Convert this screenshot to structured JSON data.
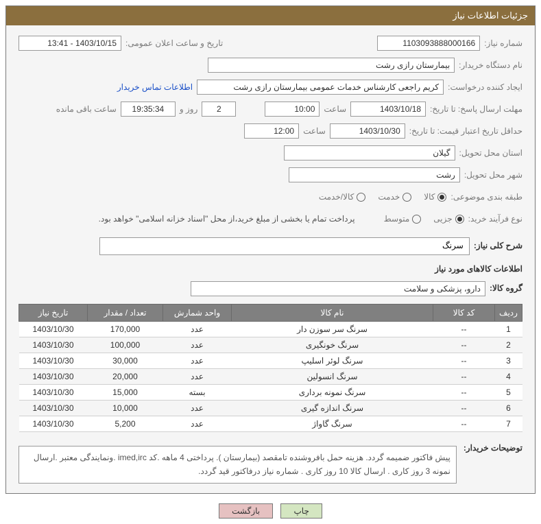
{
  "panel": {
    "title": "جزئیات اطلاعات نیاز"
  },
  "fields": {
    "need_no_label": "شماره نیاز:",
    "need_no": "1103093888000166",
    "announce_datetime_label": "تاریخ و ساعت اعلان عمومی:",
    "announce_datetime": "1403/10/15 - 13:41",
    "buyer_org_label": "نام دستگاه خریدار:",
    "buyer_org": "بیمارستان رازی رشت",
    "requester_label": "ایجاد کننده درخواست:",
    "requester": "کریم راجعی کارشناس خدمات عمومی بیمارستان رازی رشت",
    "contact_link": "اطلاعات تماس خریدار",
    "deadline_label": "مهلت ارسال پاسخ: تا تاریخ:",
    "deadline_date": "1403/10/18",
    "hour_label": "ساعت",
    "deadline_time": "10:00",
    "days_remaining": "2",
    "days_and": "روز و",
    "time_remaining": "19:35:34",
    "time_remaining_label": "ساعت باقی مانده",
    "validity_label": "حداقل تاریخ اعتبار قیمت: تا تاریخ:",
    "validity_date": "1403/10/30",
    "validity_time": "12:00",
    "province_label": "استان محل تحویل:",
    "province": "گیلان",
    "city_label": "شهر محل تحویل:",
    "city": "رشت",
    "category_label": "طبقه بندی موضوعی:",
    "cat_goods": "کالا",
    "cat_service": "خدمت",
    "cat_both": "کالا/خدمت",
    "purchase_type_label": "نوع فرآیند خرید:",
    "pt_small": "جزیی",
    "pt_medium": "متوسط",
    "purchase_note": "پرداخت تمام یا بخشی از مبلغ خرید،از محل \"اسناد خزانه اسلامی\" خواهد بود.",
    "overview_label": "شرح کلی نیاز:",
    "overview": "سرنگ",
    "items_section": "اطلاعات کالاهای مورد نیاز",
    "goods_group_label": "گروه کالا:",
    "goods_group": "دارو، پزشکی و سلامت",
    "notes_label": "توضیحات خریدار:",
    "notes": "پیش فاکتور ضمیمه گردد. هزینه حمل بافروشنده تامقصد (بیمارستان ). پرداختی 4 ماهه .کد imed,irc .ونمایندگی معتبر .ارسال نمونه 3 روز کاری . ارسال کالا 10 روز کاری . شماره نیاز درفاکتور قید گردد."
  },
  "table": {
    "headers": {
      "idx": "ردیف",
      "code": "کد کالا",
      "name": "نام کالا",
      "unit": "واحد شمارش",
      "qty": "تعداد / مقدار",
      "date": "تاریخ نیاز"
    },
    "rows": [
      {
        "idx": "1",
        "code": "--",
        "name": "سرنگ سر سوزن دار",
        "unit": "عدد",
        "qty": "170,000",
        "date": "1403/10/30"
      },
      {
        "idx": "2",
        "code": "--",
        "name": "سرنگ خونگیری",
        "unit": "عدد",
        "qty": "100,000",
        "date": "1403/10/30"
      },
      {
        "idx": "3",
        "code": "--",
        "name": "سرنگ لوئر اسلیپ",
        "unit": "عدد",
        "qty": "30,000",
        "date": "1403/10/30"
      },
      {
        "idx": "4",
        "code": "--",
        "name": "سرنگ انسولین",
        "unit": "عدد",
        "qty": "20,000",
        "date": "1403/10/30"
      },
      {
        "idx": "5",
        "code": "--",
        "name": "سرنگ نمونه برداری",
        "unit": "بسته",
        "qty": "15,000",
        "date": "1403/10/30"
      },
      {
        "idx": "6",
        "code": "--",
        "name": "سرنگ اندازه گیری",
        "unit": "عدد",
        "qty": "10,000",
        "date": "1403/10/30"
      },
      {
        "idx": "7",
        "code": "--",
        "name": "سرنگ گاواژ",
        "unit": "عدد",
        "qty": "5,200",
        "date": "1403/10/30"
      }
    ]
  },
  "buttons": {
    "print": "چاپ",
    "back": "بازگشت"
  },
  "colors": {
    "header_bg": "#8b6f3e",
    "header_fg": "#ffffff",
    "label_color": "#7a7a7a",
    "link_color": "#1a4fc7",
    "th_bg": "#808080",
    "btn_print_bg": "#d4e6c1",
    "btn_back_bg": "#e6c1c1"
  }
}
